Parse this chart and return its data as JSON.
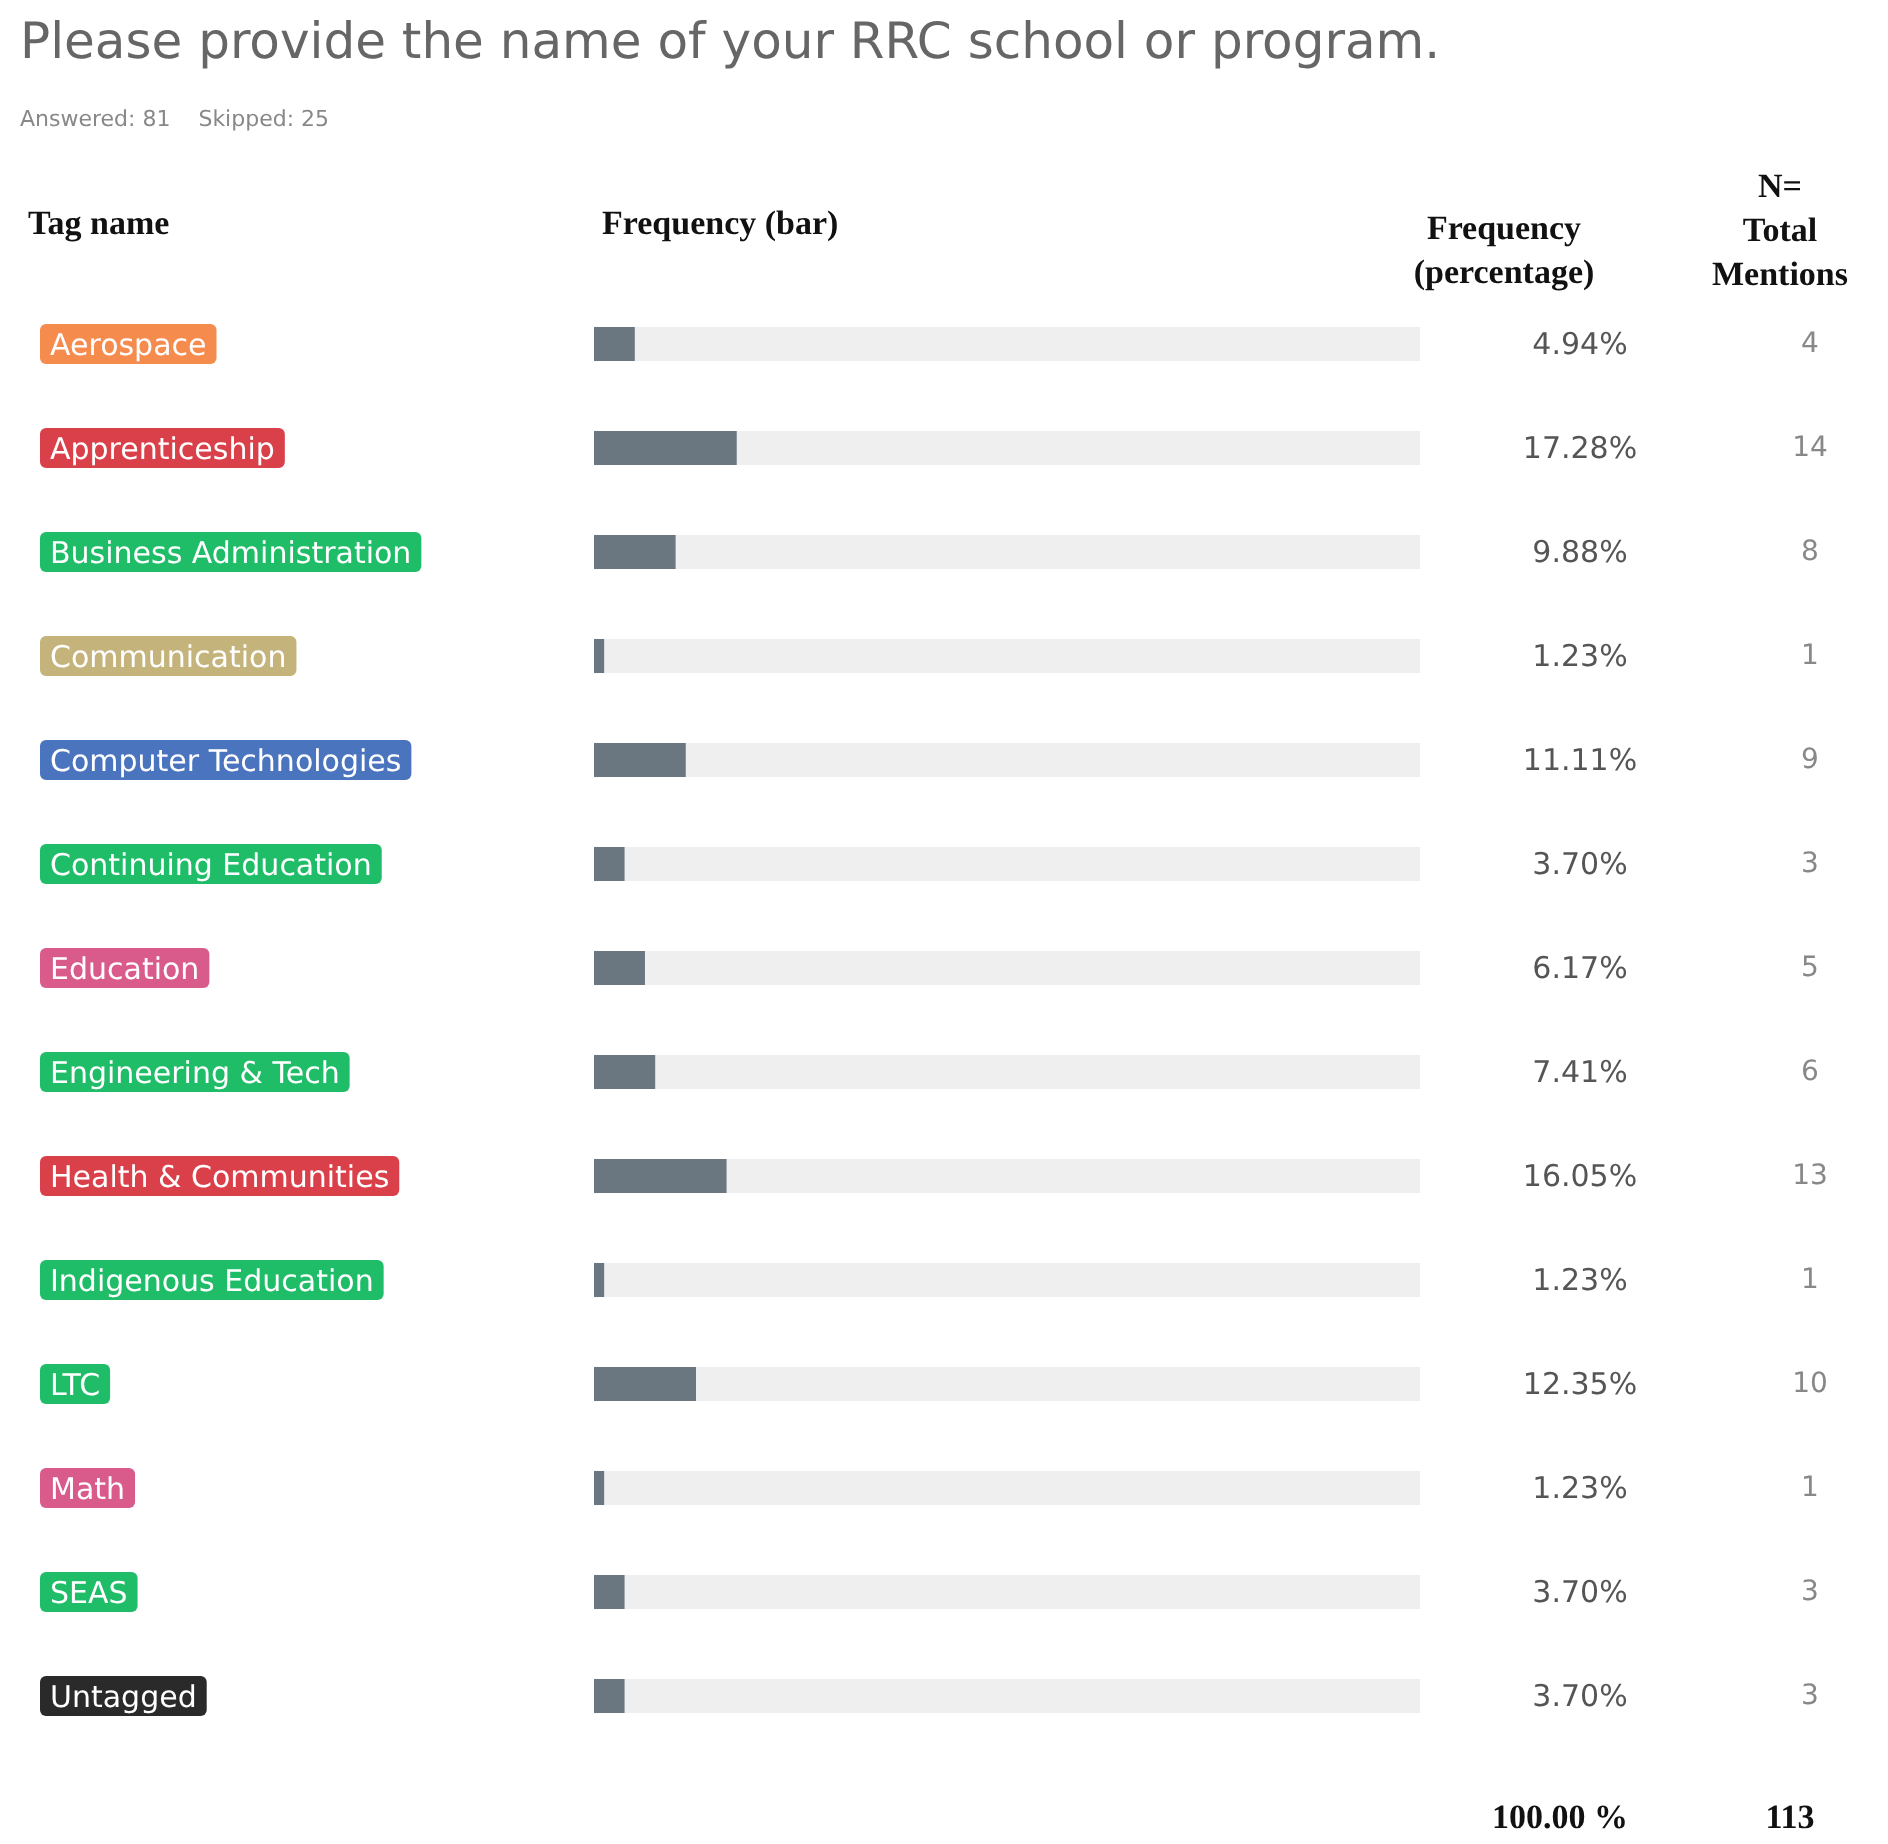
{
  "chart_data": {
    "type": "bar",
    "orientation": "horizontal",
    "title": "Please provide the name of your RRC school or program.",
    "subtitle": "Answered: 81    Skipped: 25",
    "ylabel": "Tag name",
    "xlabel": "Frequency (bar)",
    "categories": [
      "Aerospace",
      "Apprenticeship",
      "Business Administration",
      "Communication",
      "Computer Technologies",
      "Continuing Education",
      "Education",
      "Engineering & Tech",
      "Health & Communities",
      "Indigenous Education",
      "LTC",
      "Math",
      "SEAS",
      "Untagged"
    ],
    "values": [
      4.94,
      17.28,
      9.88,
      1.23,
      11.11,
      3.7,
      6.17,
      7.41,
      16.05,
      1.23,
      12.35,
      1.23,
      3.7,
      3.7
    ],
    "value_labels": [
      "4.94%",
      "17.28%",
      "9.88%",
      "1.23%",
      "11.11%",
      "3.70%",
      "6.17%",
      "7.41%",
      "16.05%",
      "1.23%",
      "12.35%",
      "1.23%",
      "3.70%",
      "3.70%"
    ],
    "color": "#6b7780",
    "xlim": [
      0,
      100
    ],
    "tick_labels": false,
    "annotations": [
      "Frequency (percentage)",
      "N= Total Mentions",
      "4",
      "14",
      "8",
      "1",
      "9",
      "3",
      "5",
      "6",
      "13",
      "1",
      "10",
      "1",
      "3",
      "3",
      "100.00 %",
      "113"
    ]
  }
}
